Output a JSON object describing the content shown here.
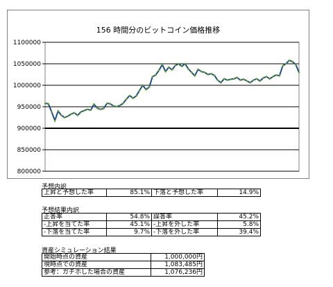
{
  "chart_data": {
    "type": "line",
    "title": "156 時間分のビットコイン価格推移",
    "ylim": [
      800000,
      1100000
    ],
    "yticks": [
      800000,
      850000,
      900000,
      950000,
      1000000,
      1050000,
      1100000
    ],
    "ytick_labels": [
      "800000",
      "850000",
      "900000",
      "950000",
      "1000000",
      "1050000",
      "1100000"
    ],
    "reference_line": 900000,
    "grid": "horizontal",
    "legend": "none",
    "line_color": "#1f4e79",
    "marker_color": "#6a9e3a",
    "x": [
      0,
      2,
      4,
      6,
      8,
      10,
      12,
      14,
      16,
      18,
      20,
      22,
      24,
      26,
      28,
      30,
      32,
      34,
      36,
      38,
      40,
      42,
      44,
      46,
      48,
      50,
      52,
      54,
      56,
      58,
      60,
      62,
      64,
      66,
      68,
      70,
      72,
      74,
      76,
      78,
      80,
      82,
      84,
      86,
      88,
      90,
      92,
      94,
      96,
      98,
      100,
      102,
      104,
      106,
      108,
      110,
      112,
      114,
      116,
      118,
      120,
      122,
      124,
      126,
      128,
      130,
      132,
      134,
      136,
      138,
      140,
      142,
      144,
      146,
      148,
      150,
      152,
      154,
      156
    ],
    "values": [
      958000,
      957000,
      938000,
      918000,
      940000,
      930000,
      925000,
      928000,
      933000,
      936000,
      930000,
      938000,
      941000,
      944000,
      942000,
      956000,
      947000,
      944000,
      946000,
      958000,
      957000,
      952000,
      950000,
      953000,
      958000,
      968000,
      976000,
      970000,
      975000,
      988000,
      1000000,
      990000,
      996000,
      1020000,
      1024000,
      1035000,
      1048000,
      1032000,
      1042000,
      1036000,
      1046000,
      1050000,
      1044000,
      1050000,
      1038000,
      1030000,
      1022000,
      1037000,
      1032000,
      1030000,
      1025000,
      1027000,
      1023000,
      1012000,
      1006000,
      1015000,
      1012000,
      1014000,
      1015000,
      1018000,
      1012000,
      1014000,
      1010000,
      1006000,
      1012000,
      1015000,
      1010000,
      1017000,
      1020000,
      1015000,
      1020000,
      1024000,
      1022000,
      1045000,
      1050000,
      1058000,
      1055000,
      1048000,
      1030000
    ]
  },
  "forecast_breakdown": {
    "title": "予想内訳",
    "rows": [
      {
        "label1": "上昇と予想した率",
        "value1": "85.1%",
        "label2": "下落と予想した率",
        "value2": "14.9%"
      }
    ]
  },
  "result_breakdown": {
    "title": "予想結果内訳",
    "rows": [
      {
        "label1": "正答率",
        "value1": "54.8%",
        "label2": "誤答率",
        "value2": "45.2%"
      },
      {
        "label1": "-上昇を当てた率",
        "value1": "45.1%",
        "label2": "-上昇を外した率",
        "value2": "5.8%"
      },
      {
        "label1": "-下落を当てた率",
        "value1": "9.7%",
        "label2": "-下落を外した率",
        "value2": "39.4%"
      }
    ]
  },
  "asset_simulation": {
    "title": "資産シミュレーション結果",
    "rows": [
      {
        "label": "開始時点の資産",
        "value": "1,000,000円"
      },
      {
        "label": "現時点での資産",
        "value": "1,083,485円"
      },
      {
        "label": "参考：ガチホした場合の資産",
        "value": "1,076,236円"
      }
    ]
  }
}
